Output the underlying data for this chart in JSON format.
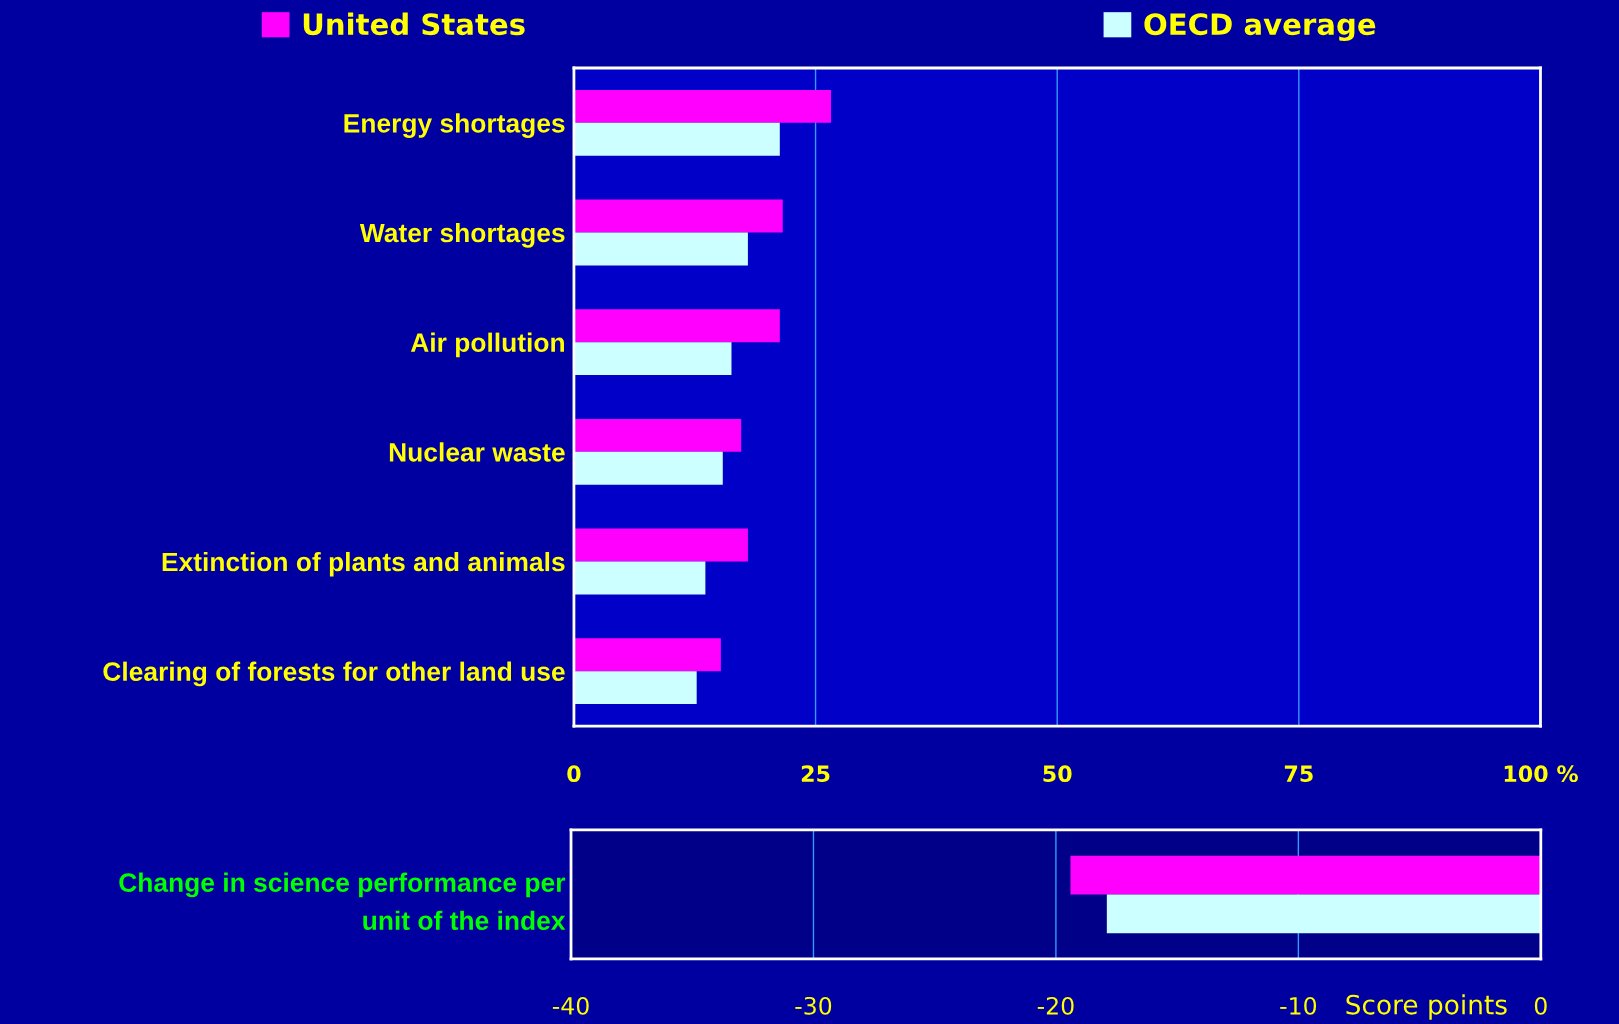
{
  "chart_data": [
    {
      "type": "bar",
      "orientation": "horizontal",
      "categories": [
        "Energy shortages",
        "Water shortages",
        "Air pollution",
        "Nuclear waste",
        "Extinction of plants and animals",
        "Clearing of forests for other land use"
      ],
      "series": [
        {
          "name": "United States",
          "color": "#ff00ff",
          "values": [
            26.6,
            21.6,
            21.3,
            17.3,
            18.0,
            15.2
          ]
        },
        {
          "name": "OECD average",
          "color": "#ccffff",
          "values": [
            21.3,
            18.0,
            16.3,
            15.4,
            13.6,
            12.7
          ]
        }
      ],
      "xlim": [
        0,
        100
      ],
      "xticks": [
        0,
        25,
        50,
        75,
        {
          "value": 100,
          "label": "100 %"
        }
      ],
      "grid": "x",
      "legend": "top"
    },
    {
      "type": "bar",
      "orientation": "horizontal",
      "categories": [
        "Change in science performance per\nunit of the index"
      ],
      "series": [
        {
          "color": "#ff00ff",
          "values": [
            -19.4
          ]
        },
        {
          "color": "#ccffff",
          "values": [
            -17.9
          ]
        }
      ],
      "xlim": [
        -40,
        0
      ],
      "xticks": [
        -40,
        -30,
        -20,
        -10,
        0
      ],
      "xlabel": "Score points",
      "grid": "x"
    }
  ]
}
